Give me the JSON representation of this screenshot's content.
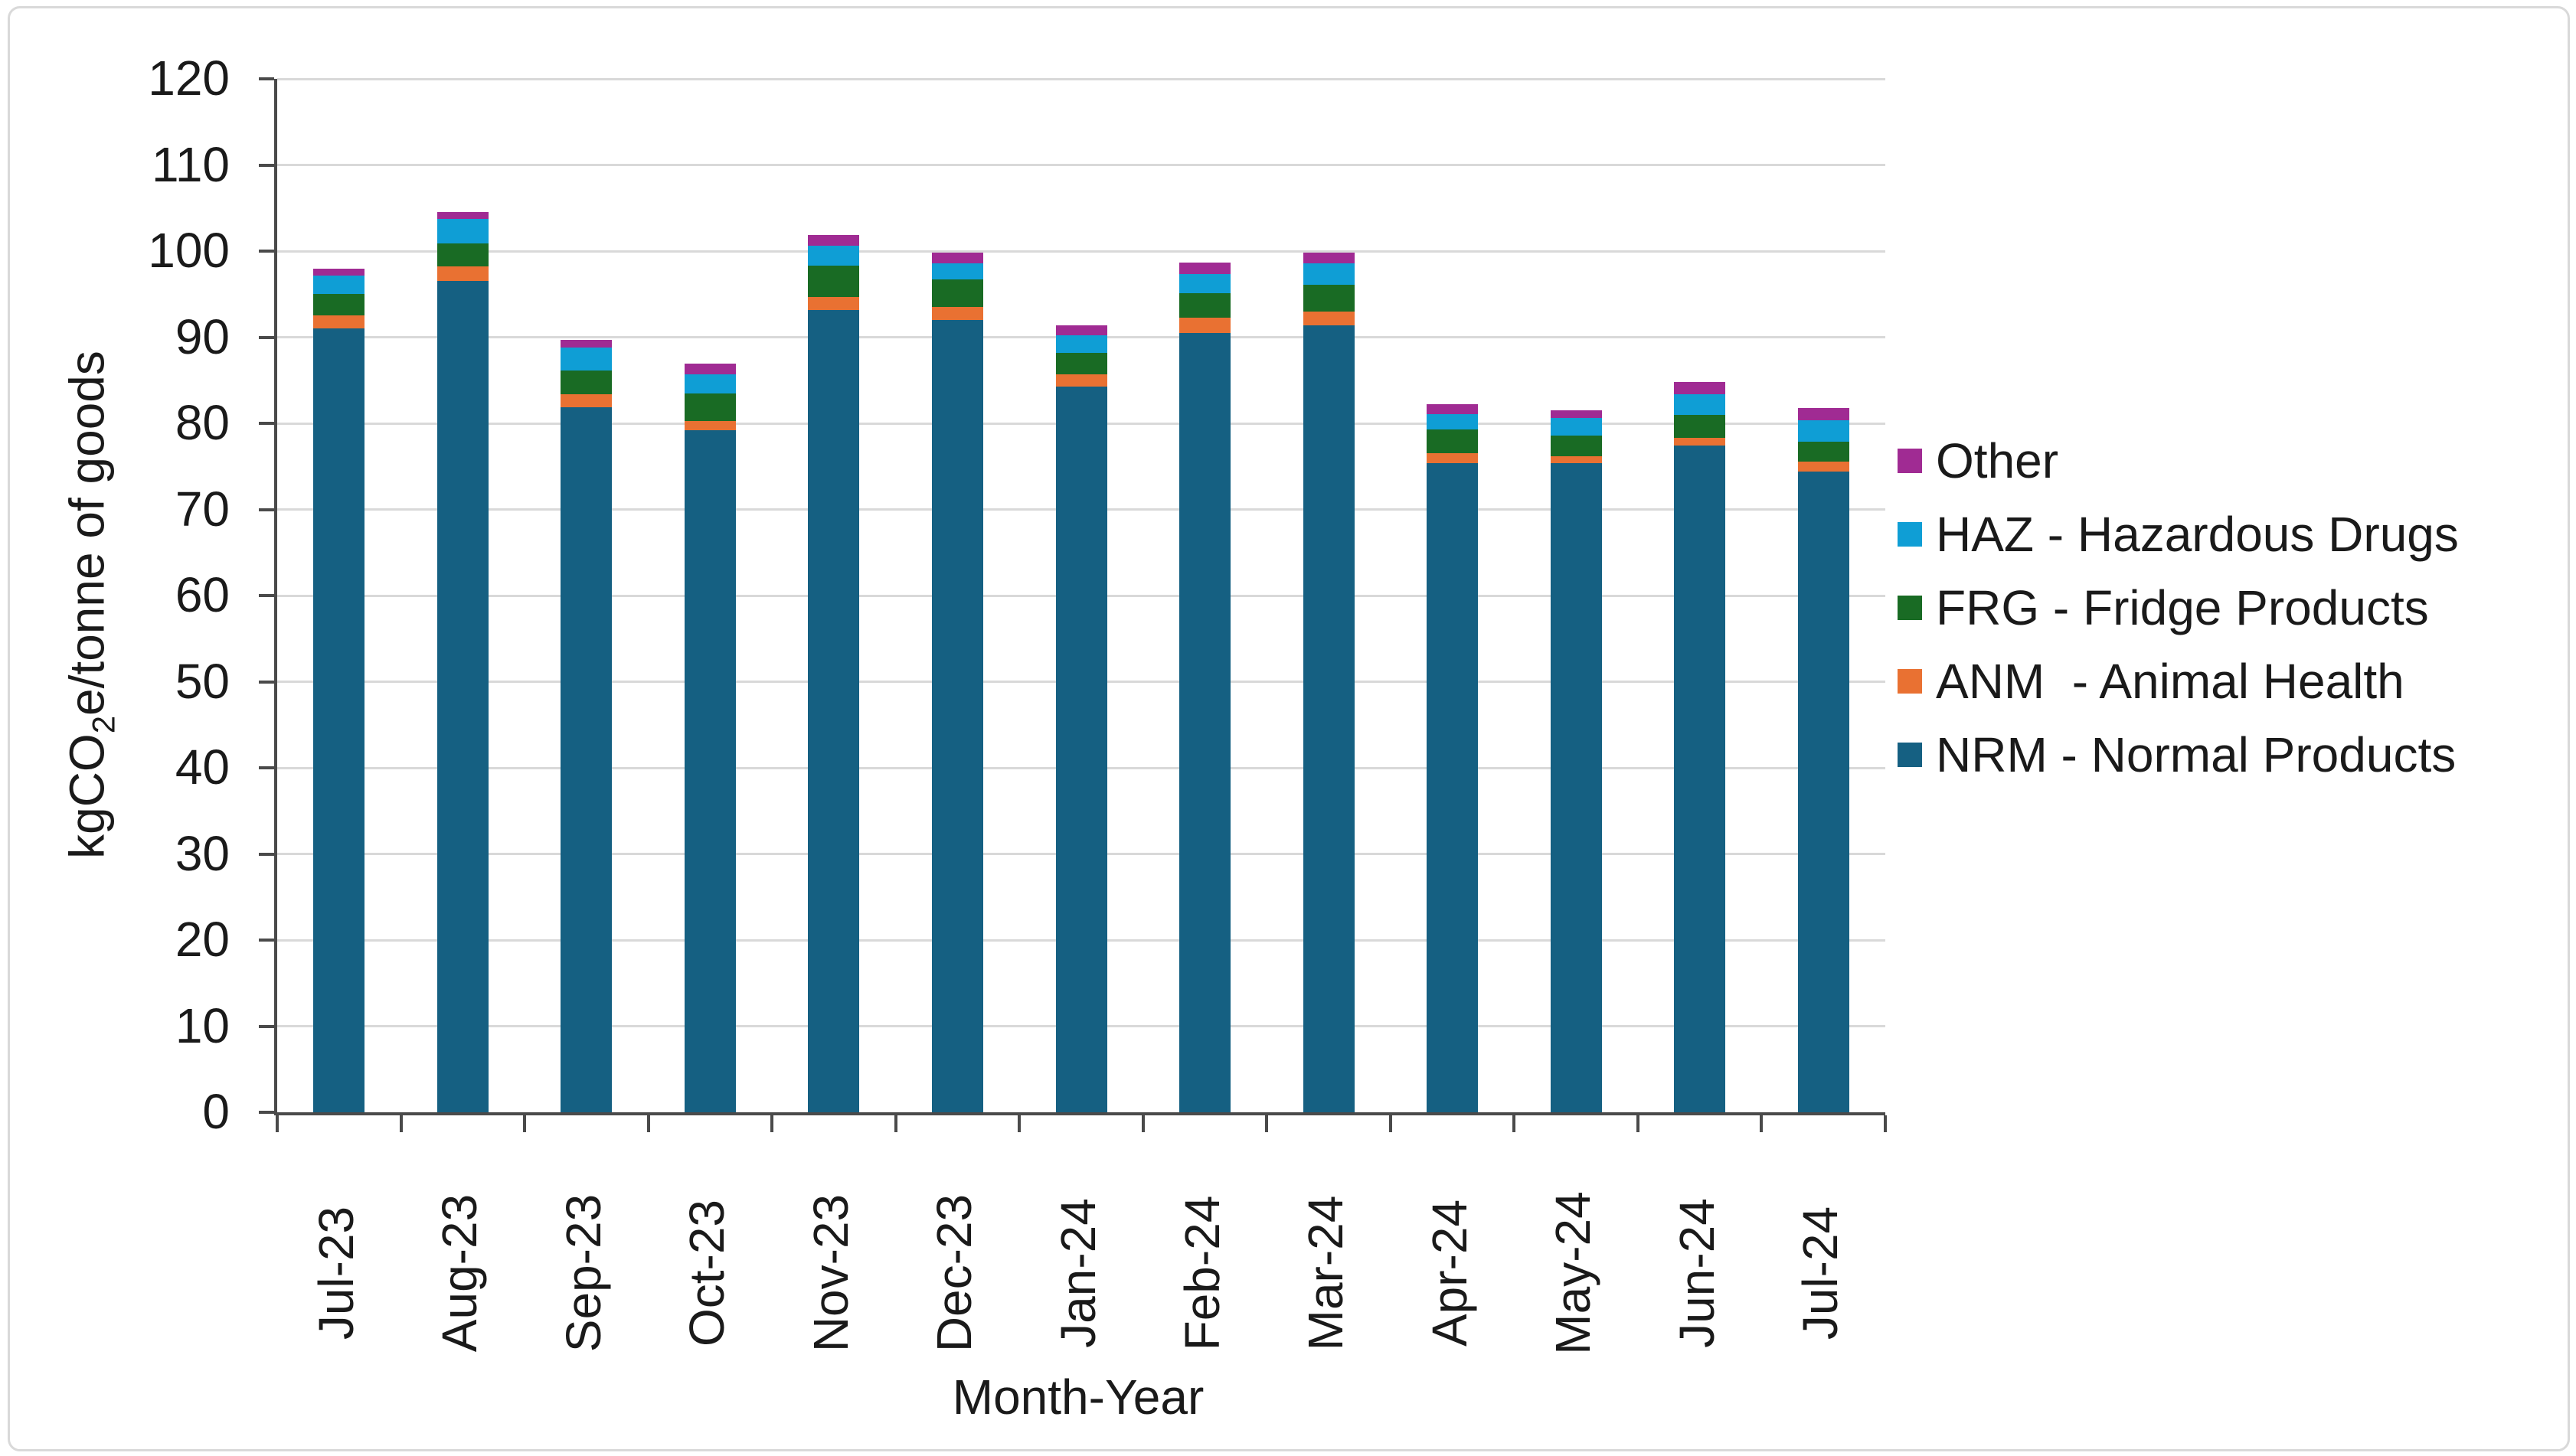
{
  "figure": {
    "background": "#ffffff",
    "border_color": "#d9d9d9",
    "axis_color": "#4a4a4a",
    "gridline_color": "#d9d9d9"
  },
  "chart_data": {
    "type": "bar",
    "stacked": true,
    "title": "",
    "xlabel": "Month-Year",
    "ylabel_parts": {
      "prefix": "kgCO",
      "subscript": "2",
      "suffix": "e/tonne of goods"
    },
    "ylim": [
      0,
      120
    ],
    "ytick_step": 10,
    "yticks": [
      "0",
      "10",
      "20",
      "30",
      "40",
      "50",
      "60",
      "70",
      "80",
      "90",
      "100",
      "110",
      "120"
    ],
    "grid": true,
    "legend_position": "right",
    "categories": [
      "Jul-23",
      "Aug-23",
      "Sep-23",
      "Oct-23",
      "Nov-23",
      "Dec-23",
      "Jan-24",
      "Feb-24",
      "Mar-24",
      "Apr-24",
      "May-24",
      "Jun-24",
      "Jul-24"
    ],
    "series": [
      {
        "name": "NRM - Normal Products",
        "color": "#156082",
        "values": [
          91.0,
          96.5,
          81.9,
          79.2,
          93.2,
          92.0,
          84.3,
          90.5,
          91.4,
          75.4,
          75.4,
          77.4,
          74.4
        ]
      },
      {
        "name": "ANM  - Animal Health",
        "color": "#E97132",
        "values": [
          1.5,
          1.7,
          1.5,
          1.1,
          1.5,
          1.5,
          1.4,
          1.8,
          1.6,
          1.1,
          0.8,
          0.9,
          1.2
        ]
      },
      {
        "name": "FRG - Fridge Products",
        "color": "#196B24",
        "values": [
          2.5,
          2.7,
          2.7,
          3.2,
          3.6,
          3.2,
          2.5,
          2.8,
          3.1,
          2.8,
          2.4,
          2.7,
          2.3
        ]
      },
      {
        "name": "HAZ - Hazardous Drugs",
        "color": "#0F9ED5",
        "values": [
          2.2,
          2.8,
          2.7,
          2.2,
          2.3,
          1.9,
          2.0,
          2.2,
          2.5,
          1.8,
          2.0,
          2.4,
          2.5
        ]
      },
      {
        "name": "Other",
        "color": "#A02B93",
        "values": [
          0.8,
          0.8,
          0.9,
          1.2,
          1.3,
          1.2,
          1.2,
          1.4,
          1.2,
          1.1,
          0.9,
          1.4,
          1.4
        ]
      }
    ],
    "totals": [
      98.0,
      104.5,
      89.7,
      86.9,
      101.9,
      99.8,
      91.4,
      98.7,
      99.8,
      82.2,
      81.5,
      84.8,
      81.8
    ],
    "legend_item_series_indexes": [
      4,
      3,
      2,
      1,
      0
    ]
  }
}
